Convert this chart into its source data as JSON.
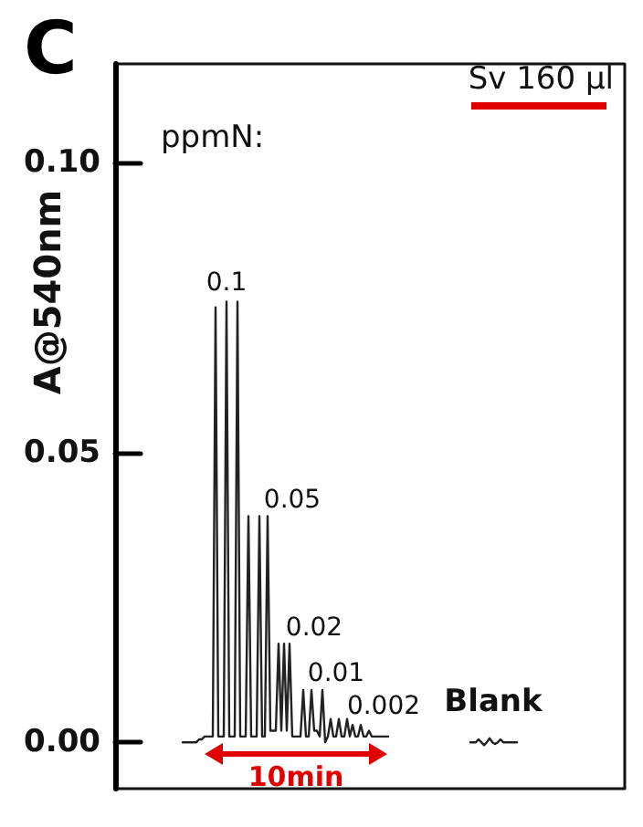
{
  "chart_data": {
    "type": "line",
    "title": "C",
    "ylabel": "A@540nm",
    "annotations": [
      "ppmN:",
      "Sv 160 µl",
      "10min",
      "0.1",
      "0.05",
      "0.02",
      "0.01",
      "0.002",
      "Blank"
    ],
    "categories": [
      null,
      null,
      null,
      null,
      null,
      null,
      null,
      null,
      null,
      null,
      null,
      null,
      null,
      null,
      null,
      null,
      null,
      null,
      null,
      null,
      null,
      null,
      null,
      null,
      null,
      null,
      null,
      null,
      null,
      null,
      null,
      null,
      null,
      null,
      null,
      null,
      null,
      null,
      null,
      null,
      null,
      null,
      null,
      null,
      null,
      null,
      null,
      null,
      null,
      null,
      null,
      null,
      null,
      null,
      null,
      null,
      null,
      null,
      null,
      null,
      null,
      null,
      null,
      null,
      null,
      null,
      null,
      null,
      null,
      null,
      null,
      null,
      null,
      null,
      null,
      null,
      null,
      null,
      null,
      null,
      null,
      null,
      null,
      null,
      null,
      null,
      null,
      null,
      null,
      null,
      null,
      null,
      null,
      null,
      null,
      null,
      null,
      null,
      null,
      null,
      null,
      null,
      null,
      null,
      null,
      null,
      null,
      null,
      null,
      null,
      null,
      null,
      null,
      null,
      null,
      null,
      null,
      null,
      null,
      null,
      null,
      null,
      null
    ],
    "series": [
      {
        "color": "#222222",
        "values": [
          0,
          0,
          0,
          0,
          0,
          0,
          0.0005,
          0.0005,
          0.001,
          0.001,
          0.001,
          0.001,
          0.075,
          0.001,
          0.001,
          0.001,
          0.076,
          0.001,
          0.001,
          0.001,
          0.076,
          0.001,
          0.001,
          0.001,
          0.039,
          0.001,
          0.001,
          0.001,
          0.039,
          0.001,
          0.001,
          0.039,
          0.002,
          0.002,
          0.002,
          0.017,
          0.002,
          0.017,
          0.002,
          0.017,
          0.001,
          0.001,
          0.001,
          0.001,
          0.009,
          0.001,
          0.001,
          0.009,
          0.002,
          0.002,
          0.001,
          0.009,
          0,
          0.001,
          0.004,
          0.001,
          0.001,
          0.004,
          0.001,
          0.001,
          0.004,
          0.001,
          0.003,
          0.001,
          0.001,
          0.003,
          0.001,
          0.001,
          0.002,
          0.001,
          0.001,
          0.001,
          0.001,
          0.001,
          0.001,
          0.001,
          null,
          null,
          null,
          null,
          null,
          null,
          null,
          null,
          null,
          null,
          null,
          null,
          null,
          null,
          null,
          null,
          null,
          null,
          null,
          null,
          null,
          null,
          null,
          null,
          null,
          null,
          null,
          null,
          null,
          null,
          null,
          null,
          null,
          null,
          null,
          null,
          null,
          null,
          null,
          null,
          null,
          null,
          null,
          null,
          null,
          null,
          null
        ]
      },
      {
        "color": "#222222",
        "values": [
          null,
          null,
          null,
          null,
          null,
          null,
          null,
          null,
          null,
          null,
          null,
          null,
          null,
          null,
          null,
          null,
          null,
          null,
          null,
          null,
          null,
          null,
          null,
          null,
          null,
          null,
          null,
          null,
          null,
          null,
          null,
          null,
          null,
          null,
          null,
          null,
          null,
          null,
          null,
          null,
          null,
          null,
          null,
          null,
          null,
          null,
          null,
          null,
          null,
          null,
          null,
          null,
          null,
          null,
          null,
          null,
          null,
          null,
          null,
          null,
          null,
          null,
          null,
          null,
          null,
          null,
          null,
          null,
          null,
          null,
          null,
          null,
          null,
          null,
          null,
          null,
          null,
          null,
          null,
          null,
          null,
          null,
          null,
          null,
          null,
          null,
          null,
          null,
          null,
          null,
          null,
          null,
          null,
          null,
          null,
          null,
          null,
          null,
          null,
          null,
          null,
          null,
          null,
          null,
          null,
          0,
          0,
          0,
          0.0005,
          0,
          -0.0005,
          0,
          0.0007,
          0,
          -0.0003,
          0,
          0.0005,
          0,
          0,
          0,
          0,
          0,
          0
        ]
      }
    ],
    "ylim": [
      -0.008,
      0.117
    ],
    "yticks": [
      {
        "value": 0,
        "label": "0.00"
      },
      {
        "value": 0.05,
        "label": "0.05"
      },
      {
        "value": 0.1,
        "label": "0.10"
      }
    ],
    "tick_labels": "y",
    "grid": false,
    "marker": "none",
    "line_style": "solid"
  }
}
